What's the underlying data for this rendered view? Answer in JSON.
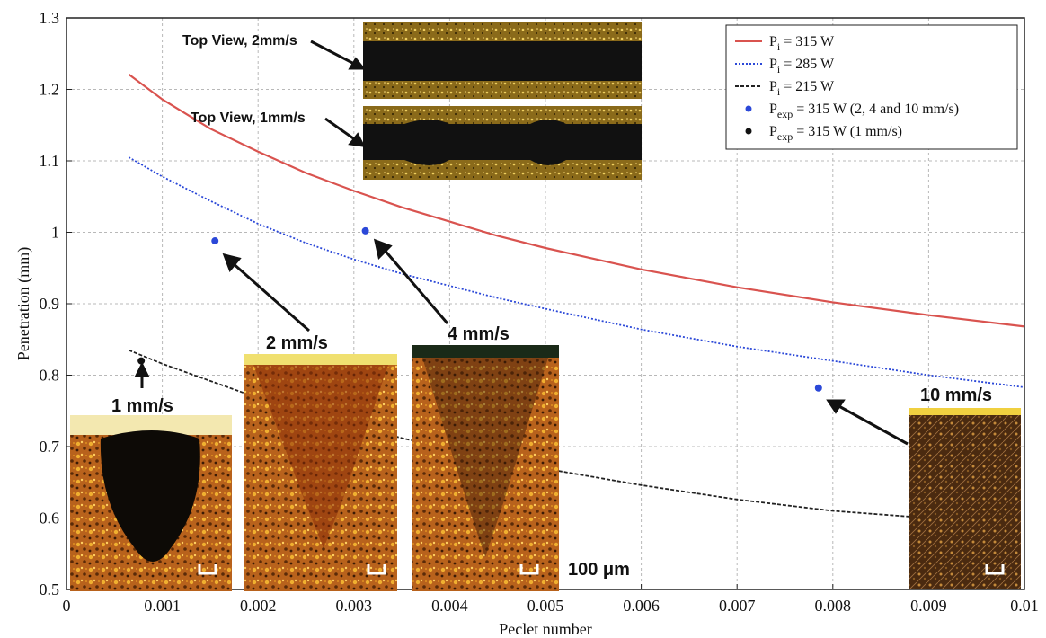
{
  "chart_data": {
    "type": "line",
    "xlabel": "Peclet number",
    "ylabel": "Penetration (mm)",
    "xlim": [
      0,
      0.01
    ],
    "ylim": [
      0.5,
      1.3
    ],
    "x_ticks": [
      "0",
      "0.001",
      "0.002",
      "0.003",
      "0.004",
      "0.005",
      "0.006",
      "0.007",
      "0.008",
      "0.009",
      "0.01"
    ],
    "y_ticks": [
      "0.5",
      "0.6",
      "0.7",
      "0.8",
      "0.9",
      "1",
      "1.1",
      "1.2",
      "1.3"
    ],
    "grid": true,
    "legend_position": "top-right",
    "series": [
      {
        "name": "P_i = 315 W",
        "legend_base": "P",
        "legend_sub": "i",
        "legend_rest": " = 315 W",
        "color": "#d9534f",
        "style": "solid",
        "x": [
          0.00065,
          0.001,
          0.0015,
          0.002,
          0.0025,
          0.003,
          0.0035,
          0.004,
          0.0045,
          0.005,
          0.006,
          0.007,
          0.008,
          0.009,
          0.01
        ],
        "y": [
          1.221,
          1.186,
          1.145,
          1.113,
          1.083,
          1.058,
          1.035,
          1.015,
          0.995,
          0.978,
          0.948,
          0.923,
          0.902,
          0.884,
          0.868
        ]
      },
      {
        "name": "P_i = 285 W",
        "legend_base": "P",
        "legend_sub": "i",
        "legend_rest": " = 285 W",
        "color": "#2b48d8",
        "style": "dotted",
        "x": [
          0.00065,
          0.001,
          0.0015,
          0.002,
          0.0025,
          0.003,
          0.0035,
          0.004,
          0.0045,
          0.005,
          0.006,
          0.007,
          0.008,
          0.009,
          0.01
        ],
        "y": [
          1.105,
          1.078,
          1.044,
          1.012,
          0.985,
          0.962,
          0.942,
          0.925,
          0.908,
          0.893,
          0.864,
          0.84,
          0.82,
          0.8,
          0.783
        ]
      },
      {
        "name": "P_i = 215 W",
        "legend_base": "P",
        "legend_sub": "i",
        "legend_rest": " = 215 W",
        "color": "#222222",
        "style": "dashed",
        "x": [
          0.00065,
          0.001,
          0.0015,
          0.002,
          0.0025,
          0.003,
          0.0035,
          0.004,
          0.0045,
          0.005,
          0.006,
          0.007,
          0.008,
          0.009
        ],
        "y": [
          0.835,
          0.816,
          0.792,
          0.768,
          0.748,
          0.729,
          0.712,
          0.697,
          0.682,
          0.669,
          0.646,
          0.626,
          0.61,
          0.6
        ]
      }
    ],
    "points": [
      {
        "name": "P_exp = 315 W (2, 4 and 10 mm/s)",
        "legend_base": "P",
        "legend_sub": "exp",
        "legend_rest": " = 315 W (2, 4 and 10 mm/s)",
        "color": "#2b48d8",
        "x": [
          0.00155,
          0.00312,
          0.00785
        ],
        "y": [
          0.988,
          1.002,
          0.782
        ]
      },
      {
        "name": "P_exp = 315 W (1 mm/s)",
        "legend_base": "P",
        "legend_sub": "exp",
        "legend_rest": " = 315 W (1 mm/s)",
        "color": "#111111",
        "x": [
          0.00078
        ],
        "y": [
          0.82
        ]
      }
    ],
    "annotations": {
      "top_view_2": "Top View, 2mm/s",
      "top_view_1": "Top View, 1mm/s",
      "speed_1": "1 mm/s",
      "speed_2": "2 mm/s",
      "speed_4": "4 mm/s",
      "speed_10": "10 mm/s",
      "scale_bar": "100 μm"
    }
  }
}
